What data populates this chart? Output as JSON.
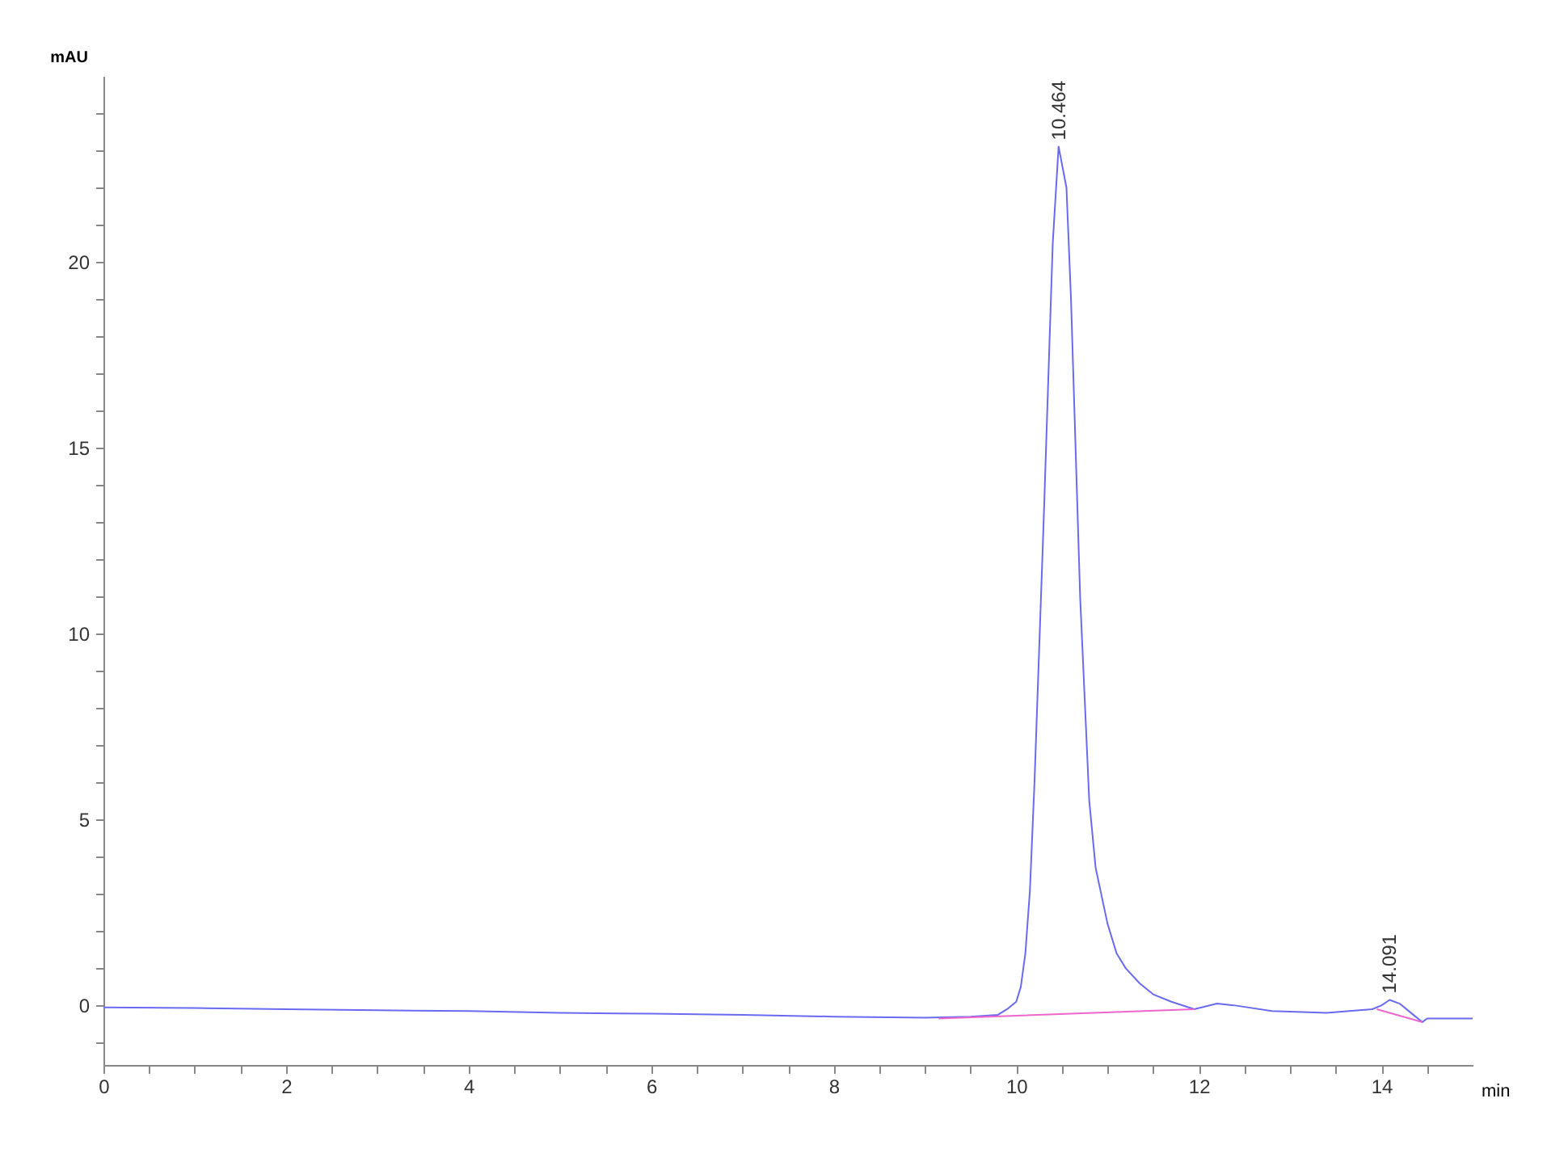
{
  "chart_data": {
    "type": "line",
    "xlabel": "min",
    "ylabel": "mAU",
    "xlim": [
      0,
      15
    ],
    "ylim": [
      -1.6,
      25
    ],
    "xticks": [
      0,
      {
        "value": 0.5,
        "label": null
      },
      {
        "value": 1,
        "label": null
      },
      {
        "value": 1.5,
        "label": null
      },
      2,
      {
        "value": 2.5,
        "label": null
      },
      {
        "value": 3,
        "label": null
      },
      {
        "value": 3.5,
        "label": null
      },
      4,
      {
        "value": 4.5,
        "label": null
      },
      {
        "value": 5,
        "label": null
      },
      {
        "value": 5.5,
        "label": null
      },
      6,
      {
        "value": 6.5,
        "label": null
      },
      {
        "value": 7,
        "label": null
      },
      {
        "value": 7.5,
        "label": null
      },
      8,
      {
        "value": 8.5,
        "label": null
      },
      {
        "value": 9,
        "label": null
      },
      {
        "value": 9.5,
        "label": null
      },
      10,
      {
        "value": 10.5,
        "label": null
      },
      {
        "value": 11,
        "label": null
      },
      {
        "value": 11.5,
        "label": null
      },
      12,
      {
        "value": 12.5,
        "label": null
      },
      {
        "value": 13,
        "label": null
      },
      {
        "value": 13.5,
        "label": null
      },
      14,
      {
        "value": 14.5,
        "label": null
      }
    ],
    "yticks": [
      {
        "value": -1,
        "label": null
      },
      0,
      {
        "value": 1,
        "label": null
      },
      {
        "value": 2,
        "label": null
      },
      {
        "value": 3,
        "label": null
      },
      {
        "value": 4,
        "label": null
      },
      5,
      {
        "value": 6,
        "label": null
      },
      {
        "value": 7,
        "label": null
      },
      {
        "value": 8,
        "label": null
      },
      {
        "value": 9,
        "label": null
      },
      10,
      {
        "value": 11,
        "label": null
      },
      {
        "value": 12,
        "label": null
      },
      {
        "value": 13,
        "label": null
      },
      {
        "value": 14,
        "label": null
      },
      15,
      {
        "value": 16,
        "label": null
      },
      {
        "value": 17,
        "label": null
      },
      {
        "value": 18,
        "label": null
      },
      {
        "value": 19,
        "label": null
      },
      20,
      {
        "value": 21,
        "label": null
      },
      {
        "value": 22,
        "label": null
      },
      {
        "value": 23,
        "label": null
      },
      {
        "value": 24,
        "label": null
      }
    ],
    "marker": "none",
    "series": [
      {
        "color": "#6a6af0",
        "x": [
          0,
          1,
          2,
          3,
          4,
          5,
          6,
          7,
          8,
          9,
          9.5,
          9.8,
          9.9,
          10,
          10.05,
          10.1,
          10.15,
          10.2,
          10.3,
          10.4,
          10.464,
          10.55,
          10.6,
          10.7,
          10.8,
          10.87,
          11,
          11.1,
          11.2,
          11.35,
          11.5,
          11.7,
          11.95,
          12.2,
          12.4,
          12.8,
          13.4,
          13.9,
          14,
          14.091,
          14.2,
          14.35,
          14.45,
          14.5,
          15
        ],
        "values": [
          -0.05,
          -0.07,
          -0.1,
          -0.13,
          -0.15,
          -0.2,
          -0.22,
          -0.25,
          -0.3,
          -0.33,
          -0.3,
          -0.25,
          -0.1,
          0.1,
          0.5,
          1.4,
          3.1,
          6,
          13,
          20.5,
          23.1,
          22,
          19,
          11,
          5.5,
          3.7,
          2.2,
          1.4,
          1,
          0.6,
          0.3,
          0.1,
          -0.1,
          0.05,
          0,
          -0.15,
          -0.2,
          -0.1,
          0,
          0.15,
          0.05,
          -0.25,
          -0.45,
          -0.35,
          -0.35
        ]
      },
      {
        "color": "#ee66cc",
        "x": [
          9.15,
          11.95,
          13.5,
          13.95,
          14.45
        ],
        "values": [
          -0.35,
          -0.1,
          null,
          -0.1,
          -0.45
        ]
      }
    ],
    "annotations": [
      {
        "text": "10.464",
        "x": 10.464,
        "y": 23.1
      },
      {
        "text": "14.091",
        "x": 14.091,
        "y": 0.15
      }
    ]
  }
}
